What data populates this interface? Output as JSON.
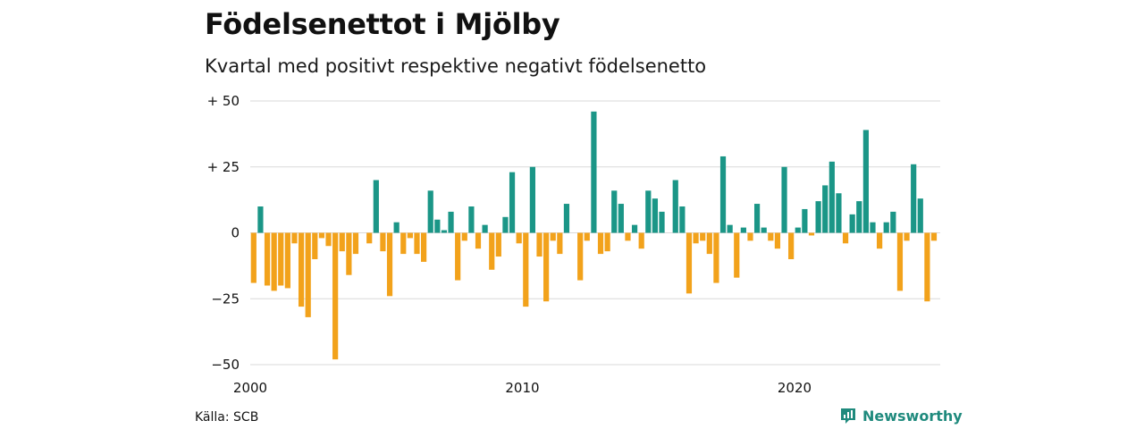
{
  "header": {
    "title": "Födelsenettot i Mjölby",
    "subtitle": "Kvartal med positivt respektive negativt födelsenetto"
  },
  "footer": {
    "source": "Källa: SCB",
    "brand": "Newsworthy"
  },
  "colors": {
    "positive": "#1b9687",
    "negative": "#f2a21b",
    "grid": "#d9d9d9",
    "brand": "#1f8a7d"
  },
  "chart_data": {
    "type": "bar",
    "x_start": "2000 Q1",
    "y_ticks": [
      50,
      25,
      0,
      -25,
      -50
    ],
    "y_tick_labels": [
      "+ 50",
      "+ 25",
      "0",
      "−25",
      "−50"
    ],
    "x_ticks": [
      2000,
      2010,
      2020
    ],
    "x_tick_labels": [
      "2000",
      "2010",
      "2020"
    ],
    "ylim": [
      -50,
      50
    ],
    "grid": true,
    "values": [
      -19,
      10,
      -20,
      -22,
      -20,
      -21,
      -4,
      -28,
      -32,
      -10,
      -2,
      -5,
      -48,
      -7,
      -16,
      -8,
      0,
      -4,
      20,
      -7,
      -24,
      4,
      -8,
      -2,
      -8,
      -11,
      16,
      5,
      1,
      8,
      -18,
      -3,
      10,
      -6,
      3,
      -14,
      -9,
      6,
      23,
      -4,
      -28,
      25,
      -9,
      -26,
      -3,
      -8,
      11,
      0,
      -18,
      -3,
      46,
      -8,
      -7,
      16,
      11,
      -3,
      3,
      -6,
      16,
      13,
      8,
      0,
      20,
      10,
      -23,
      -4,
      -3,
      -8,
      -19,
      29,
      3,
      -17,
      2,
      -3,
      11,
      2,
      -3,
      -6,
      25,
      -10,
      2,
      9,
      -1,
      12,
      18,
      27,
      15,
      -4,
      7,
      12,
      39,
      4,
      -6,
      4,
      8,
      -22,
      -3,
      26,
      13,
      -26,
      -3
    ]
  }
}
